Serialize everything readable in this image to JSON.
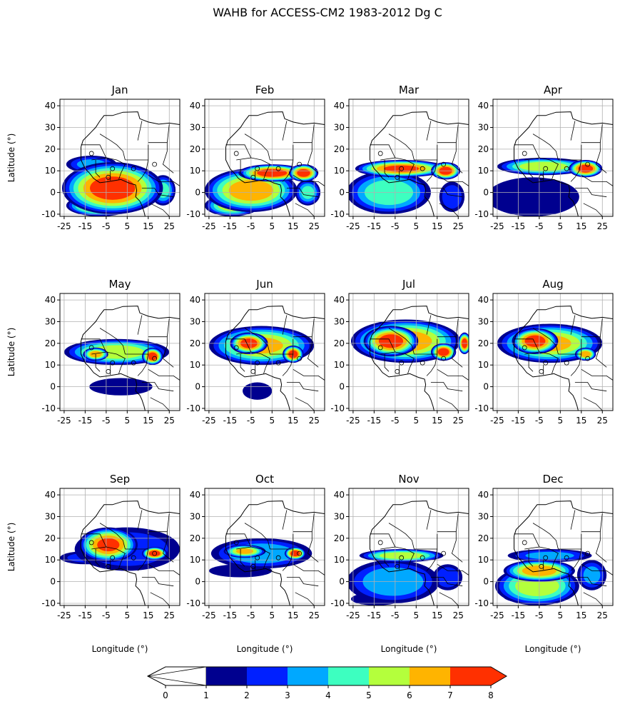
{
  "figure": {
    "title": "WAHB for ACCESS-CM2 1983-2012 Dg C"
  },
  "colorbar": {
    "ticks": [
      "0",
      "1",
      "2",
      "3",
      "4",
      "5",
      "6",
      "7",
      "8"
    ],
    "colors": [
      "#ffffff",
      "#00008f",
      "#0020ff",
      "#00a8ff",
      "#3dffc0",
      "#b4ff3c",
      "#ffb400",
      "#ff3000"
    ]
  },
  "chart_data": {
    "type": "heatmap",
    "title": "WAHB for ACCESS-CM2 1983-2012 Dg C",
    "xlabel": "Longitude (°)",
    "ylabel": "Latitude (°)",
    "xlim": [
      -27,
      30
    ],
    "ylim": [
      -11,
      43
    ],
    "xticks": [
      "-25",
      "-15",
      "-5",
      "5",
      "15",
      "25"
    ],
    "yticks": [
      "-10",
      "0",
      "10",
      "20",
      "30",
      "40"
    ],
    "grid": true,
    "levels": [
      0,
      1,
      2,
      3,
      4,
      5,
      6,
      7,
      8
    ],
    "panels": [
      {
        "label": "Jan",
        "features": [
          {
            "lon": -2,
            "lat": 2,
            "rx": 24,
            "ry": 12,
            "v": 7.5
          },
          {
            "lon": -8,
            "lat": -6,
            "rx": 16,
            "ry": 5,
            "v": 6.5
          },
          {
            "lon": 22,
            "lat": 1,
            "rx": 6,
            "ry": 7,
            "v": 4
          },
          {
            "lon": -12,
            "lat": 13,
            "rx": 12,
            "ry": 4,
            "v": 3
          }
        ]
      },
      {
        "label": "Feb",
        "features": [
          {
            "lon": -5,
            "lat": 1,
            "rx": 22,
            "ry": 10,
            "v": 6.5
          },
          {
            "lon": -14,
            "lat": -6,
            "rx": 13,
            "ry": 5,
            "v": 5.5
          },
          {
            "lon": 5,
            "lat": 9,
            "rx": 16,
            "ry": 4,
            "v": 7.5
          },
          {
            "lon": 20,
            "lat": 9,
            "rx": 7,
            "ry": 4,
            "v": 7.5
          },
          {
            "lon": 22,
            "lat": 0,
            "rx": 6,
            "ry": 6,
            "v": 4
          }
        ]
      },
      {
        "label": "Mar",
        "features": [
          {
            "lon": -8,
            "lat": 0,
            "rx": 20,
            "ry": 10,
            "v": 4.5
          },
          {
            "lon": -2,
            "lat": 11,
            "rx": 22,
            "ry": 4,
            "v": 7
          },
          {
            "lon": 19,
            "lat": 10,
            "rx": 7,
            "ry": 4,
            "v": 7.5
          },
          {
            "lon": 22,
            "lat": -2,
            "rx": 6,
            "ry": 7,
            "v": 2.5
          }
        ]
      },
      {
        "label": "Apr",
        "features": [
          {
            "lon": -8,
            "lat": -2,
            "rx": 22,
            "ry": 9,
            "v": 1.5
          },
          {
            "lon": -3,
            "lat": 12,
            "rx": 22,
            "ry": 4,
            "v": 5.5
          },
          {
            "lon": 17,
            "lat": 11,
            "rx": 8,
            "ry": 4,
            "v": 7.5
          }
        ]
      },
      {
        "label": "May",
        "features": [
          {
            "lon": 0,
            "lat": 16,
            "rx": 25,
            "ry": 6,
            "v": 5.5
          },
          {
            "lon": 17,
            "lat": 14,
            "rx": 5,
            "ry": 4,
            "v": 7.5
          },
          {
            "lon": 2,
            "lat": 0,
            "rx": 15,
            "ry": 4,
            "v": 1.5
          },
          {
            "lon": -10,
            "lat": 15,
            "rx": 6,
            "ry": 3,
            "v": 6.5
          }
        ]
      },
      {
        "label": "Jun",
        "features": [
          {
            "lon": 0,
            "lat": 19,
            "rx": 25,
            "ry": 9,
            "v": 6
          },
          {
            "lon": -6,
            "lat": 20,
            "rx": 9,
            "ry": 5,
            "v": 7.5
          },
          {
            "lon": 15,
            "lat": 15,
            "rx": 5,
            "ry": 4,
            "v": 7.5
          },
          {
            "lon": -2,
            "lat": -2,
            "rx": 7,
            "ry": 4,
            "v": 1.5
          }
        ]
      },
      {
        "label": "Jul",
        "features": [
          {
            "lon": 0,
            "lat": 21,
            "rx": 26,
            "ry": 10,
            "v": 6.5
          },
          {
            "lon": -7,
            "lat": 21,
            "rx": 13,
            "ry": 7,
            "v": 7.5
          },
          {
            "lon": 18,
            "lat": 16,
            "rx": 6,
            "ry": 4,
            "v": 7.5
          },
          {
            "lon": 28,
            "lat": 20,
            "rx": 3,
            "ry": 5,
            "v": 7.5
          }
        ]
      },
      {
        "label": "Aug",
        "features": [
          {
            "lon": 0,
            "lat": 20,
            "rx": 25,
            "ry": 9,
            "v": 6
          },
          {
            "lon": -7,
            "lat": 21,
            "rx": 11,
            "ry": 6,
            "v": 7.5
          },
          {
            "lon": 17,
            "lat": 15,
            "rx": 5,
            "ry": 3,
            "v": 6.5
          }
        ]
      },
      {
        "label": "Sep",
        "features": [
          {
            "lon": -4,
            "lat": 17,
            "rx": 14,
            "ry": 8,
            "v": 7
          },
          {
            "lon": 5,
            "lat": 15,
            "rx": 25,
            "ry": 10,
            "v": 2.5
          },
          {
            "lon": 18,
            "lat": 13,
            "rx": 6,
            "ry": 3,
            "v": 7.5
          },
          {
            "lon": -15,
            "lat": 11,
            "rx": 12,
            "ry": 3,
            "v": 2
          }
        ]
      },
      {
        "label": "Oct",
        "features": [
          {
            "lon": 0,
            "lat": 13,
            "rx": 24,
            "ry": 7,
            "v": 3.5
          },
          {
            "lon": 16,
            "lat": 13,
            "rx": 5,
            "ry": 3,
            "v": 7.5
          },
          {
            "lon": -8,
            "lat": 14,
            "rx": 10,
            "ry": 3,
            "v": 6
          },
          {
            "lon": -10,
            "lat": 5,
            "rx": 15,
            "ry": 3,
            "v": 1.5
          }
        ]
      },
      {
        "label": "Nov",
        "features": [
          {
            "lon": -6,
            "lat": 0,
            "rx": 22,
            "ry": 10,
            "v": 3.5
          },
          {
            "lon": -2,
            "lat": 12,
            "rx": 20,
            "ry": 3,
            "v": 5.5
          },
          {
            "lon": -14,
            "lat": -8,
            "rx": 12,
            "ry": 3,
            "v": 1.5
          },
          {
            "lon": 20,
            "lat": 2,
            "rx": 7,
            "ry": 6,
            "v": 2.5
          }
        ]
      },
      {
        "label": "Dec",
        "features": [
          {
            "lon": -6,
            "lat": -2,
            "rx": 20,
            "ry": 9,
            "v": 5.5
          },
          {
            "lon": -5,
            "lat": 5,
            "rx": 17,
            "ry": 5,
            "v": 6.5
          },
          {
            "lon": -8,
            "lat": -7,
            "rx": 14,
            "ry": 3,
            "v": 4.5
          },
          {
            "lon": 20,
            "lat": 3,
            "rx": 7,
            "ry": 7,
            "v": 3
          },
          {
            "lon": 0,
            "lat": 12,
            "rx": 20,
            "ry": 3,
            "v": 3
          }
        ]
      }
    ]
  }
}
